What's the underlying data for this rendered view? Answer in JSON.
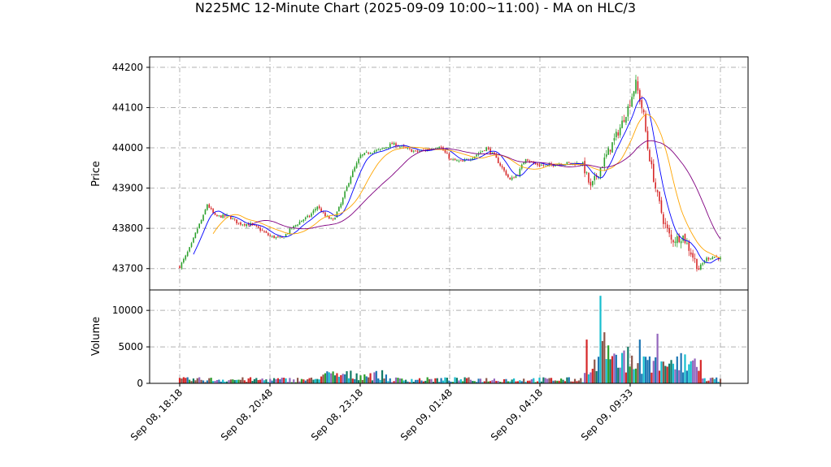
{
  "chart_data": {
    "type": "candlestick",
    "title": "N225MC 12-Minute Chart (2025-09-09 10:00~11:00) - MA on HLC/3",
    "xlabel": "",
    "ylabel_price": "Price",
    "ylabel_volume": "Volume",
    "grid": true,
    "grid_style": "dash-dot",
    "x_tick_labels": [
      "Sep 08, 18:18",
      "Sep 08, 20:48",
      "Sep 08, 23:18",
      "Sep 09, 01:48",
      "Sep 09, 04:18",
      "Sep 09, 09:33"
    ],
    "price_ticks": [
      43700,
      43800,
      43900,
      44000,
      44100,
      44200
    ],
    "price_ylim": [
      43647,
      44226
    ],
    "volume_ticks": [
      0,
      5000,
      10000
    ],
    "volume_ylim": [
      0,
      12800
    ],
    "up_color": "#2ca02c",
    "down_color": "#d62728",
    "ma_colors": [
      "#0000ff",
      "#ffa500",
      "#800080"
    ],
    "price_anchors": [
      [
        0,
        43705
      ],
      [
        3,
        43730
      ],
      [
        6,
        43760
      ],
      [
        9,
        43800
      ],
      [
        12,
        43830
      ],
      [
        14,
        43860
      ],
      [
        18,
        43830
      ],
      [
        25,
        43830
      ],
      [
        30,
        43812
      ],
      [
        36,
        43810
      ],
      [
        40,
        43800
      ],
      [
        46,
        43780
      ],
      [
        52,
        43775
      ],
      [
        57,
        43800
      ],
      [
        62,
        43820
      ],
      [
        66,
        43830
      ],
      [
        70,
        43855
      ],
      [
        74,
        43830
      ],
      [
        78,
        43820
      ],
      [
        82,
        43860
      ],
      [
        87,
        43930
      ],
      [
        92,
        43980
      ],
      [
        97,
        43990
      ],
      [
        102,
        43995
      ],
      [
        108,
        44010
      ],
      [
        114,
        44000
      ],
      [
        120,
        43990
      ],
      [
        126,
        43995
      ],
      [
        132,
        44005
      ],
      [
        138,
        43970
      ],
      [
        144,
        43965
      ],
      [
        150,
        43980
      ],
      [
        156,
        44000
      ],
      [
        160,
        43980
      ],
      [
        164,
        43950
      ],
      [
        168,
        43920
      ],
      [
        172,
        43935
      ],
      [
        176,
        43975
      ],
      [
        180,
        43960
      ],
      [
        186,
        43955
      ],
      [
        192,
        43960
      ],
      [
        198,
        43962
      ],
      [
        205,
        43960
      ],
      [
        209,
        43900
      ],
      [
        212,
        43930
      ],
      [
        216,
        43970
      ],
      [
        220,
        44010
      ],
      [
        224,
        44050
      ],
      [
        228,
        44100
      ],
      [
        232,
        44160
      ],
      [
        236,
        44080
      ],
      [
        238,
        44000
      ],
      [
        242,
        43900
      ],
      [
        246,
        43820
      ],
      [
        250,
        43770
      ],
      [
        256,
        43780
      ],
      [
        260,
        43740
      ],
      [
        264,
        43700
      ],
      [
        268,
        43725
      ],
      [
        272,
        43730
      ],
      [
        275,
        43725
      ]
    ],
    "volume_spikes": [
      [
        207,
        6000
      ],
      [
        209,
        1500
      ],
      [
        210,
        2000
      ],
      [
        214,
        12000
      ],
      [
        215,
        5800
      ],
      [
        216,
        7000
      ],
      [
        218,
        5200
      ],
      [
        226,
        4500
      ],
      [
        228,
        5000
      ],
      [
        230,
        3800
      ],
      [
        234,
        6000
      ],
      [
        238,
        3200
      ],
      [
        243,
        6800
      ],
      [
        245,
        3000
      ],
      [
        250,
        3200
      ],
      [
        256,
        1500
      ],
      [
        262,
        3400
      ]
    ]
  }
}
